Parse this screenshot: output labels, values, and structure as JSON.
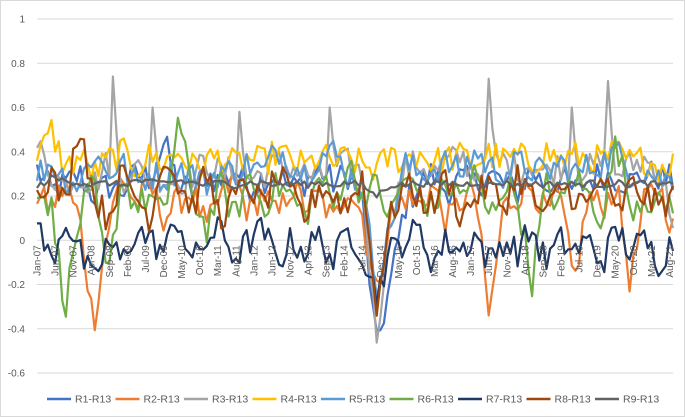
{
  "chart_data": {
    "type": "line",
    "title": "",
    "xlabel": "",
    "ylabel": "",
    "ylim": [
      -0.6,
      1
    ],
    "yticks": [
      -0.6,
      -0.4,
      -0.2,
      0,
      0.2,
      0.4,
      0.6,
      0.8,
      1
    ],
    "ytick_labels": [
      "-0.6",
      "-0.4",
      "-0.2",
      "0",
      "0.2",
      "0.4",
      "0.6",
      "0.8",
      "1"
    ],
    "x_start": "Jan-07",
    "x_end": "Sep-21",
    "xtick_labels": [
      "Jan-07",
      "Jun-07",
      "Nov-07",
      "Apr-08",
      "Sep-08",
      "Feb-09",
      "Jul-09",
      "Dec-09",
      "May-10",
      "Oct-10",
      "Mar-11",
      "Aug-11",
      "Jan-12",
      "Jun-12",
      "Nov-12",
      "Apr-13",
      "Sep-13",
      "Feb-14",
      "Jul-14",
      "Dec-14",
      "May-15",
      "Oct-15",
      "Mar-16",
      "Aug-16",
      "Jan-17",
      "Jun-17",
      "Nov-17",
      "Apr-18",
      "Sep-18",
      "Feb-19",
      "Jul-19",
      "Dec-19",
      "May-20",
      "Oct-20",
      "Mar-21",
      "Aug-21"
    ],
    "grid": true,
    "legend_position": "bottom",
    "series": [
      {
        "name": "R1-R13",
        "color": "#4472c4",
        "anchors": [
          0.32,
          0.22,
          0.25,
          0.3,
          0.2,
          0.25,
          0.22,
          0.3,
          0.28,
          0.44,
          0.25,
          0.22,
          0.3,
          0.26,
          0.32,
          0.24,
          0.28,
          0.3,
          0.23,
          0.27,
          0.32,
          0.26,
          0.3,
          0.18,
          -0.49,
          -0.2,
          0.15,
          0.25,
          0.3,
          0.22,
          0.28,
          0.25,
          0.3,
          0.26,
          0.22,
          0.32,
          0.24,
          0.28,
          0.22,
          0.27,
          0.3,
          0.28,
          0.26,
          0.3,
          0.29,
          0.27
        ],
        "spikes": []
      },
      {
        "name": "R2-R13",
        "color": "#ed7d31",
        "anchors": [
          0.2,
          0.15,
          0.25,
          0.1,
          -0.38,
          0.05,
          0.3,
          0.15,
          0.25,
          0.1,
          0.18,
          0.22,
          0.05,
          0.2,
          0.28,
          0.12,
          0.22,
          0.1,
          0.25,
          0.15,
          0.2,
          0.08,
          0.25,
          0.12,
          -0.25,
          0.1,
          0.2,
          0.15,
          0.25,
          0.08,
          0.18,
          0.22,
          -0.36,
          0.15,
          0.2,
          0.25,
          0.12,
          0.2,
          -0.2,
          0.2,
          0.15,
          0.25,
          -0.2,
          0.18,
          0.25,
          0.05
        ],
        "spikes": []
      },
      {
        "name": "R3-R13",
        "color": "#a5a5a5",
        "anchors": [
          0.43,
          0.3,
          0.25,
          0.3,
          0.25,
          0.35,
          0.28,
          0.32,
          0.3,
          0.28,
          0.26,
          0.3,
          0.35,
          0.3,
          0.32,
          0.28,
          0.3,
          0.35,
          0.33,
          0.3,
          0.28,
          0.32,
          0.35,
          0.3,
          -0.45,
          0.1,
          0.32,
          0.35,
          0.3,
          0.35,
          0.38,
          0.3,
          0.34,
          0.36,
          0.32,
          0.35,
          0.3,
          0.34,
          0.33,
          0.32,
          0.35,
          0.3,
          0.34,
          0.36,
          0.32,
          0.1
        ],
        "spikes": [
          [
            0.12,
            0.74
          ],
          [
            0.18,
            0.6
          ],
          [
            0.32,
            0.58
          ],
          [
            0.46,
            0.6
          ],
          [
            0.71,
            0.73
          ],
          [
            0.84,
            0.6
          ],
          [
            0.9,
            0.72
          ]
        ]
      },
      {
        "name": "R4-R13",
        "color": "#ffc000",
        "anchors": [
          0.35,
          0.5,
          0.32,
          0.38,
          0.3,
          0.36,
          0.4,
          0.33,
          0.38,
          0.35,
          0.4,
          0.33,
          0.36,
          0.38,
          0.34,
          0.37,
          0.35,
          0.4,
          0.36,
          0.33,
          0.38,
          0.35,
          0.37,
          0.34,
          0.32,
          0.38,
          0.36,
          0.4,
          0.35,
          0.37,
          0.38,
          0.35,
          0.39,
          0.36,
          0.38,
          0.35,
          0.4,
          0.36,
          0.38,
          0.37,
          0.36,
          0.4,
          0.35,
          0.37,
          0.33,
          0.35
        ],
        "spikes": []
      },
      {
        "name": "R5-R13",
        "color": "#5b9bd5",
        "anchors": [
          0.3,
          0.35,
          0.28,
          0.25,
          0.4,
          0.3,
          0.35,
          0.25,
          0.3,
          0.28,
          0.33,
          0.3,
          0.26,
          0.32,
          0.3,
          0.35,
          0.3,
          0.42,
          0.35,
          0.3,
          0.38,
          0.4,
          0.3,
          0.25,
          -0.2,
          0.05,
          0.35,
          0.3,
          0.32,
          0.35,
          0.3,
          0.4,
          0.33,
          0.3,
          0.35,
          0.32,
          0.3,
          0.35,
          0.3,
          0.33,
          0.35,
          0.4,
          0.3,
          0.32,
          0.28,
          0.27
        ],
        "spikes": []
      },
      {
        "name": "R6-R13",
        "color": "#70ad47",
        "anchors": [
          0.25,
          0.15,
          -0.3,
          0.1,
          0.25,
          -0.2,
          0.3,
          0.15,
          0.2,
          0.1,
          0.55,
          0.2,
          0.05,
          0.25,
          0.1,
          0.3,
          0.15,
          0.25,
          0.2,
          0.1,
          0.3,
          0.15,
          0.35,
          0.2,
          0.25,
          0.1,
          0.3,
          0.2,
          0.15,
          0.25,
          0.2,
          0.3,
          0.1,
          0.25,
          0.2,
          -0.2,
          0.25,
          0.15,
          0.3,
          0.2,
          0.1,
          0.45,
          0.15,
          0.2,
          0.15,
          0.18
        ],
        "spikes": []
      },
      {
        "name": "R7-R13",
        "color": "#203864",
        "anchors": [
          0.07,
          -0.1,
          0.1,
          -0.05,
          -0.2,
          0.0,
          -0.1,
          0.05,
          0.0,
          -0.05,
          0.1,
          -0.1,
          0.0,
          0.05,
          -0.08,
          0.0,
          0.05,
          -0.1,
          0.0,
          -0.05,
          0.02,
          -0.1,
          0.05,
          -0.05,
          -0.25,
          -0.05,
          0.0,
          0.05,
          -0.1,
          0.0,
          -0.05,
          0.03,
          -0.1,
          0.0,
          -0.05,
          0.05,
          -0.1,
          0.0,
          -0.05,
          0.0,
          -0.1,
          0.05,
          -0.05,
          0.0,
          -0.1,
          0.0
        ],
        "spikes": []
      },
      {
        "name": "R8-R13",
        "color": "#9e480e",
        "anchors": [
          0.22,
          0.3,
          0.15,
          0.55,
          0.2,
          0.1,
          0.3,
          0.2,
          0.1,
          0.4,
          0.25,
          0.15,
          0.3,
          0.1,
          0.2,
          0.25,
          0.15,
          0.3,
          0.2,
          0.1,
          0.25,
          0.2,
          0.15,
          0.3,
          -0.3,
          0.1,
          0.25,
          0.2,
          0.15,
          0.3,
          0.1,
          0.2,
          0.25,
          0.15,
          0.3,
          0.2,
          0.1,
          0.25,
          0.2,
          0.15,
          0.3,
          0.1,
          0.25,
          0.2,
          0.15,
          0.2
        ],
        "spikes": []
      },
      {
        "name": "R9-R13",
        "color": "#636363",
        "anchors": [
          0.24,
          0.28,
          0.27,
          0.26,
          0.25,
          0.26,
          0.25,
          0.27,
          0.26,
          0.26,
          0.27,
          0.26,
          0.25,
          0.26,
          0.25,
          0.26,
          0.26,
          0.25,
          0.26,
          0.25,
          0.26,
          0.25,
          0.26,
          0.25,
          0.2,
          0.25,
          0.25,
          0.26,
          0.25,
          0.26,
          0.25,
          0.26,
          0.25,
          0.26,
          0.25,
          0.26,
          0.25,
          0.26,
          0.25,
          0.26,
          0.25,
          0.26,
          0.25,
          0.26,
          0.25,
          0.25
        ],
        "spikes": []
      }
    ]
  }
}
